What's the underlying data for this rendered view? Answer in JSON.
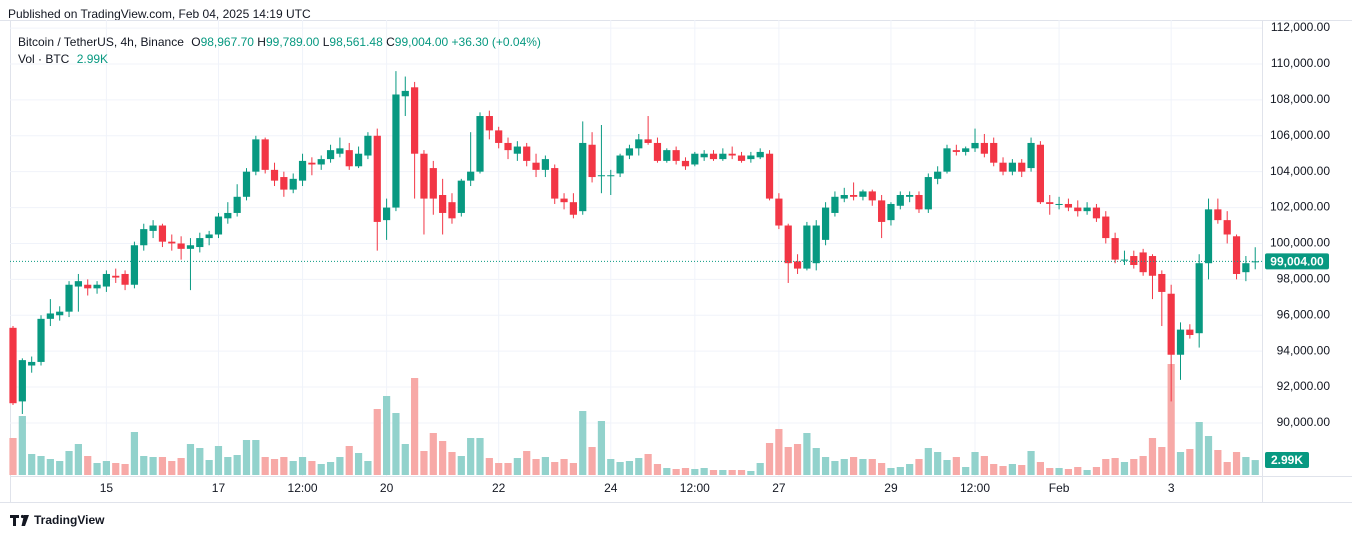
{
  "published": "Published on TradingView.com, Feb 04, 2025 14:19 UTC",
  "brand": "TradingView",
  "chart_data": {
    "type": "candlestick",
    "title": "Bitcoin / TetherUS, 4h, Binance",
    "ohlc_legend": {
      "o_key": "O",
      "open": "98,967.70",
      "h_key": "H",
      "high": "99,789.00",
      "l_key": "L",
      "low": "98,561.48",
      "c_key": "C",
      "close": "99,004.00",
      "change": "+36.30 (+0.04%)"
    },
    "volume_legend": {
      "name": "Vol · BTC",
      "value": "2.99K"
    },
    "last_price_label": "99,004.00",
    "last_volume_label": "2.99K",
    "up_color": "#089981",
    "down_color": "#f23645",
    "up_volume_color": "#92d2cc",
    "down_volume_color": "#f7a9a7",
    "grid": true,
    "ylim": [
      87100,
      112450
    ],
    "yticks": [
      {
        "value": 112000,
        "label": "112,000.00"
      },
      {
        "value": 110000,
        "label": "110,000.00"
      },
      {
        "value": 108000,
        "label": "108,000.00"
      },
      {
        "value": 106000,
        "label": "106,000.00"
      },
      {
        "value": 104000,
        "label": "104,000.00"
      },
      {
        "value": 102000,
        "label": "102,000.00"
      },
      {
        "value": 100000,
        "label": "100,000.00"
      },
      {
        "value": 98000,
        "label": "98,000.00"
      },
      {
        "value": 96000,
        "label": "96,000.00"
      },
      {
        "value": 94000,
        "label": "94,000.00"
      },
      {
        "value": 92000,
        "label": "92,000.00"
      },
      {
        "value": 90000,
        "label": "90,000.00"
      }
    ],
    "xticks": [
      {
        "value": 10,
        "label": "15"
      },
      {
        "value": 22,
        "label": "17"
      },
      {
        "value": 31,
        "label": "12:00"
      },
      {
        "value": 40,
        "label": "20"
      },
      {
        "value": 52,
        "label": "22"
      },
      {
        "value": 64,
        "label": "24"
      },
      {
        "value": 73,
        "label": "12:00"
      },
      {
        "value": 82,
        "label": "27"
      },
      {
        "value": 94,
        "label": "29"
      },
      {
        "value": 103,
        "label": "12:00"
      },
      {
        "value": 112,
        "label": "Feb"
      },
      {
        "value": 124,
        "label": "3"
      }
    ],
    "open": [
      95300,
      91200,
      93200,
      93400,
      95800,
      96000,
      96200,
      97600,
      97700,
      97500,
      97600,
      98200,
      98300,
      97700,
      99900,
      100700,
      101000,
      100100,
      100000,
      99700,
      99800,
      100300,
      100500,
      101400,
      101700,
      102600,
      104000,
      105800,
      104100,
      103700,
      103000,
      103500,
      104500,
      104400,
      104700,
      105000,
      105200,
      104300,
      104900,
      106000,
      101300,
      102000,
      108200,
      108700,
      105000,
      104200,
      102700,
      102300,
      101700,
      103500,
      104000,
      107100,
      106300,
      105600,
      105000,
      105400,
      104500,
      104100,
      104200,
      102500,
      102300,
      101800,
      105500,
      103800,
      103800,
      103900,
      104900,
      105300,
      105800,
      105600,
      104600,
      105200,
      104600,
      104400,
      104800,
      105000,
      104700,
      105000,
      104900,
      104700,
      104800,
      105000,
      102500,
      101000,
      99000,
      98600,
      98900,
      100200,
      101700,
      102500,
      102700,
      102600,
      102900,
      102400,
      101300,
      102100,
      102600,
      102700,
      101900,
      103600,
      104000,
      105200,
      105100,
      105300,
      105600,
      105600,
      104500,
      104000,
      104500,
      104200,
      105500,
      102300,
      102200,
      102200,
      102000,
      101800,
      102000,
      101500,
      100300,
      99100,
      99300,
      99500,
      99300,
      98300,
      97200,
      93800,
      95200,
      95000,
      98900,
      101900,
      101300,
      100400,
      98400,
      98967.7
    ],
    "high": [
      95400,
      93600,
      93700,
      96000,
      96900,
      96500,
      97900,
      98300,
      98000,
      97900,
      98500,
      98600,
      98500,
      100100,
      101100,
      101300,
      101100,
      100500,
      100400,
      100300,
      100600,
      100700,
      101700,
      102300,
      103300,
      104200,
      106000,
      105900,
      104500,
      104000,
      103900,
      105000,
      104800,
      104900,
      105500,
      105900,
      105600,
      105400,
      106200,
      106400,
      102500,
      109600,
      109300,
      109000,
      105200,
      104600,
      103600,
      102800,
      103600,
      106200,
      107300,
      107400,
      106500,
      105900,
      105700,
      105600,
      105000,
      104900,
      104400,
      102800,
      102800,
      106800,
      106200,
      106600,
      104100,
      105000,
      105500,
      106100,
      107100,
      105900,
      105300,
      105400,
      104800,
      105100,
      105200,
      105200,
      105300,
      105400,
      105100,
      105100,
      105300,
      105200,
      102800,
      101100,
      99400,
      101200,
      101300,
      102300,
      102900,
      103100,
      103400,
      103000,
      103000,
      102700,
      102300,
      102900,
      102900,
      102900,
      103900,
      104300,
      105500,
      105500,
      105400,
      106400,
      106100,
      105900,
      104800,
      104700,
      104700,
      105900,
      105700,
      102700,
      102600,
      102500,
      102400,
      102300,
      102200,
      101800,
      100600,
      99600,
      99600,
      99700,
      99400,
      98500,
      97700,
      95600,
      95500,
      99400,
      102500,
      102500,
      101800,
      100500,
      99300,
      99789
    ],
    "low": [
      91000,
      90500,
      92800,
      93200,
      95400,
      95700,
      95900,
      96200,
      97100,
      97200,
      97300,
      97800,
      97400,
      97500,
      99600,
      100300,
      99800,
      99600,
      99100,
      97400,
      99500,
      99900,
      100300,
      101100,
      101500,
      102400,
      103800,
      103900,
      103200,
      102600,
      102800,
      103200,
      103800,
      104100,
      104500,
      104800,
      104100,
      104200,
      104700,
      99600,
      100200,
      101800,
      107100,
      102500,
      100500,
      101600,
      100500,
      101100,
      101500,
      103200,
      103900,
      105800,
      105300,
      104700,
      104600,
      104300,
      103700,
      103700,
      102200,
      101900,
      101400,
      101600,
      103400,
      102800,
      102700,
      103700,
      104700,
      104900,
      105500,
      104500,
      104500,
      104400,
      104100,
      104300,
      104600,
      104600,
      104600,
      104700,
      104500,
      104500,
      104700,
      102400,
      100800,
      97800,
      98300,
      98500,
      98500,
      99900,
      101500,
      102300,
      102400,
      102400,
      102100,
      100300,
      101000,
      101900,
      102300,
      101700,
      101700,
      103300,
      103900,
      104900,
      104900,
      105100,
      104800,
      104300,
      103800,
      103800,
      103700,
      104000,
      102200,
      101600,
      101900,
      101800,
      101500,
      101600,
      101200,
      100000,
      98900,
      98800,
      98600,
      98200,
      96900,
      95400,
      91200,
      92400,
      94700,
      94200,
      98000,
      101100,
      100000,
      98000,
      97900,
      98561.48
    ],
    "close": [
      91100,
      93500,
      93400,
      95800,
      96100,
      96200,
      97700,
      97900,
      97500,
      97700,
      98300,
      98100,
      97700,
      99900,
      100800,
      101000,
      100100,
      100000,
      99700,
      99900,
      100300,
      100500,
      101500,
      101700,
      102600,
      104000,
      105800,
      104100,
      103500,
      103000,
      103600,
      104600,
      104400,
      104700,
      105200,
      105300,
      104300,
      105000,
      106000,
      101200,
      102000,
      108300,
      108500,
      105000,
      102500,
      102500,
      101700,
      101400,
      103500,
      104000,
      107100,
      106300,
      105600,
      105200,
      105400,
      104600,
      104100,
      104700,
      102500,
      102300,
      101600,
      105600,
      103700,
      103800,
      103800,
      104900,
      105300,
      105800,
      105600,
      104600,
      105200,
      104600,
      104300,
      105000,
      105000,
      104700,
      105000,
      104900,
      104600,
      104900,
      105100,
      102500,
      101000,
      98900,
      98600,
      101000,
      101000,
      102000,
      102600,
      102700,
      102600,
      102900,
      102400,
      101200,
      102200,
      102700,
      102700,
      101900,
      103700,
      104000,
      105300,
      105100,
      105300,
      105600,
      105000,
      104500,
      104000,
      104500,
      104000,
      105600,
      102300,
      102200,
      102200,
      102000,
      101800,
      102000,
      101400,
      100300,
      99100,
      99100,
      98800,
      98400,
      98200,
      97300,
      93800,
      95200,
      94900,
      98900,
      101900,
      101300,
      100500,
      98300,
      98900,
      99004
    ],
    "volume": [
      7400,
      11800,
      4200,
      3800,
      3200,
      2800,
      4800,
      6200,
      3800,
      2400,
      2800,
      2400,
      2200,
      8600,
      3800,
      3600,
      3600,
      2800,
      3400,
      6200,
      5400,
      3000,
      5800,
      3600,
      4000,
      7000,
      7000,
      3600,
      3200,
      3600,
      2800,
      3600,
      2800,
      2200,
      2600,
      3600,
      5800,
      4400,
      2800,
      13200,
      15800,
      12400,
      6200,
      19400,
      4800,
      8400,
      6800,
      4600,
      3800,
      7400,
      7400,
      3400,
      2400,
      2400,
      3400,
      4800,
      3200,
      3600,
      2600,
      3200,
      2400,
      12800,
      5600,
      10800,
      3200,
      2600,
      2800,
      3400,
      4200,
      2200,
      1400,
      1200,
      1400,
      1200,
      1400,
      1000,
      1000,
      1000,
      1000,
      800,
      2400,
      6400,
      9200,
      5600,
      6200,
      8400,
      5400,
      3600,
      2800,
      3200,
      3600,
      3200,
      3200,
      2400,
      1400,
      1600,
      2200,
      3200,
      5400,
      4600,
      3000,
      3600,
      1600,
      4600,
      3800,
      2200,
      1800,
      2200,
      2000,
      4800,
      2600,
      1400,
      1400,
      1200,
      1600,
      1000,
      1600,
      3200,
      3400,
      2600,
      3200,
      3800,
      7400,
      5600,
      22200,
      4600,
      5200,
      10600,
      7800,
      5000,
      2600,
      4600,
      3600,
      2990
    ]
  }
}
